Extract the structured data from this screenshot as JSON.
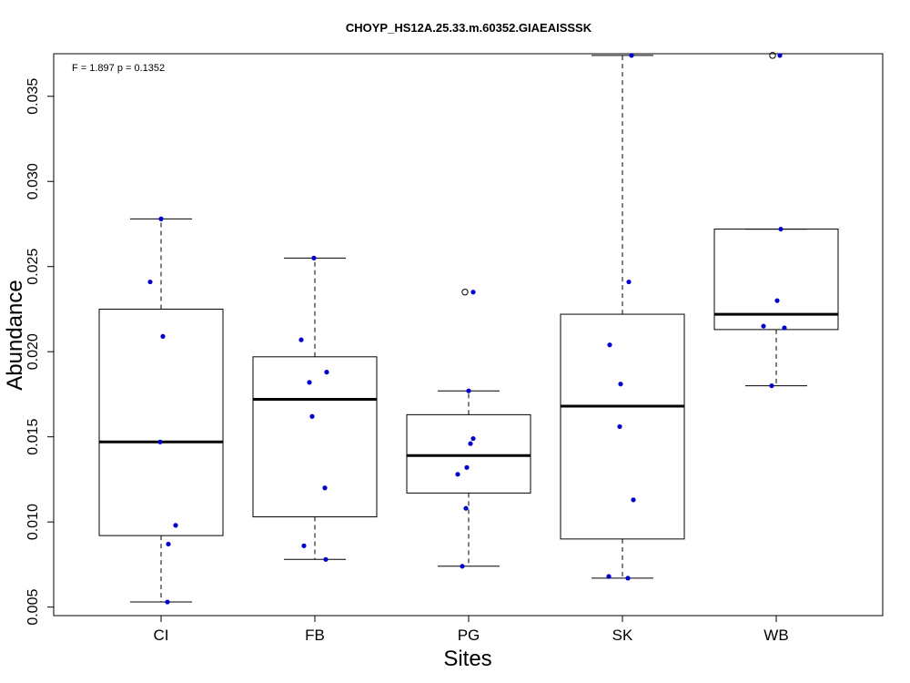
{
  "chart_data": {
    "type": "boxplot",
    "title": "CHOYP_HS12A.25.33.m.60352.GIAEAISSSK",
    "annotation": "F = 1.897 p = 0.1352",
    "xlabel": "Sites",
    "ylabel": "Abundance",
    "ylim": [
      0.0045,
      0.0375
    ],
    "yticks": [
      0.005,
      0.01,
      0.015,
      0.02,
      0.025,
      0.03,
      0.035
    ],
    "ytick_labels": [
      "0.005",
      "0.010",
      "0.015",
      "0.020",
      "0.025",
      "0.030",
      "0.035"
    ],
    "categories": [
      "CI",
      "FB",
      "PG",
      "SK",
      "WB"
    ],
    "boxes": [
      {
        "category": "CI",
        "whisker_low": 0.0053,
        "q1": 0.0092,
        "median": 0.0147,
        "q3": 0.0225,
        "whisker_high": 0.0278,
        "outliers": []
      },
      {
        "category": "FB",
        "whisker_low": 0.0078,
        "q1": 0.0103,
        "median": 0.0172,
        "q3": 0.0197,
        "whisker_high": 0.0255,
        "outliers": []
      },
      {
        "category": "PG",
        "whisker_low": 0.0074,
        "q1": 0.0117,
        "median": 0.0139,
        "q3": 0.0163,
        "whisker_high": 0.0177,
        "outliers": [
          0.0235
        ]
      },
      {
        "category": "SK",
        "whisker_low": 0.0067,
        "q1": 0.009,
        "median": 0.0168,
        "q3": 0.0222,
        "whisker_high": 0.0374,
        "outliers": []
      },
      {
        "category": "WB",
        "whisker_low": 0.018,
        "q1": 0.0213,
        "median": 0.0222,
        "q3": 0.0272,
        "whisker_high": 0.0272,
        "outliers": [
          0.0374
        ]
      }
    ],
    "points": [
      {
        "category": "CI",
        "values": [
          0.0278,
          0.0241,
          0.0209,
          0.0147,
          0.0098,
          0.0087,
          0.0053
        ],
        "jitter": [
          0.0,
          -0.12,
          0.02,
          -0.01,
          0.16,
          0.08,
          0.07
        ]
      },
      {
        "category": "FB",
        "values": [
          0.0255,
          0.0207,
          0.0182,
          0.0188,
          0.0162,
          0.012,
          0.0086,
          0.0078
        ],
        "jitter": [
          -0.01,
          -0.15,
          -0.06,
          0.13,
          -0.03,
          0.11,
          -0.12,
          0.12
        ]
      },
      {
        "category": "PG",
        "values": [
          0.0235,
          0.0177,
          0.0149,
          0.0146,
          0.0132,
          0.0128,
          0.0108,
          0.0074
        ],
        "jitter": [
          0.05,
          0.0,
          0.05,
          0.02,
          -0.02,
          -0.12,
          -0.03,
          -0.07
        ]
      },
      {
        "category": "SK",
        "values": [
          0.0374,
          0.0241,
          0.0204,
          0.0181,
          0.0156,
          0.0113,
          0.0068,
          0.0067
        ],
        "jitter": [
          0.1,
          0.07,
          -0.14,
          -0.02,
          -0.03,
          0.12,
          -0.15,
          0.06
        ]
      },
      {
        "category": "WB",
        "values": [
          0.0374,
          0.0272,
          0.023,
          0.0215,
          0.0214,
          0.018
        ],
        "jitter": [
          0.04,
          0.05,
          0.01,
          -0.14,
          0.09,
          -0.05
        ]
      }
    ],
    "point_color": "#0000CD",
    "outlier_color": "#000000",
    "box_color": "#000000",
    "grid": false
  }
}
